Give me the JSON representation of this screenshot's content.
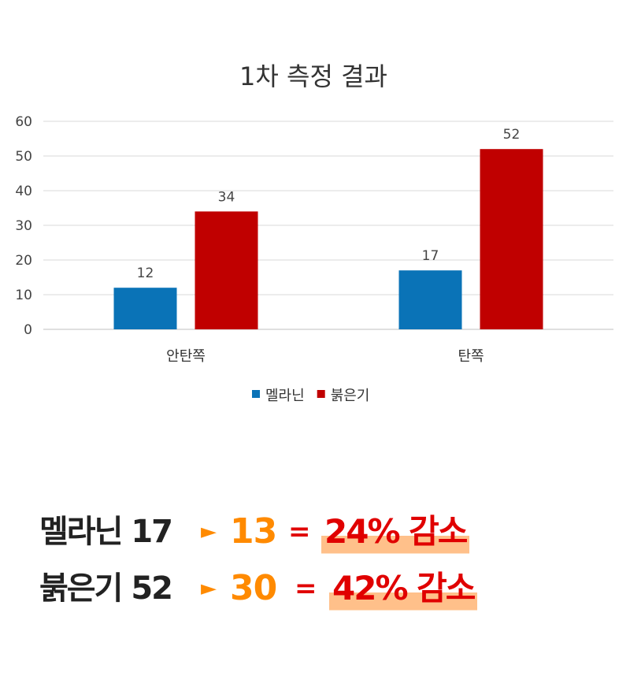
{
  "chart_data": {
    "type": "bar",
    "title": "1차 측정 결과",
    "categories": [
      "안탄쪽",
      "탄쪽"
    ],
    "series": [
      {
        "name": "멜라닌",
        "values": [
          12,
          17
        ],
        "color": "#0a73b7"
      },
      {
        "name": "붉은기",
        "values": [
          34,
          52
        ],
        "color": "#c00000"
      }
    ],
    "ylim": [
      0,
      60
    ],
    "yticks": [
      0,
      10,
      20,
      30,
      40,
      50,
      60
    ],
    "grid": true,
    "legend_position": "bottom"
  },
  "summary": [
    {
      "label": "멜라닌 17",
      "arrow": "►",
      "after": "13",
      "equals": "=",
      "result": "24% 감소"
    },
    {
      "label": "붉은기 52",
      "arrow": "►",
      "after": "30",
      "equals": "=",
      "result": "42% 감소"
    }
  ]
}
